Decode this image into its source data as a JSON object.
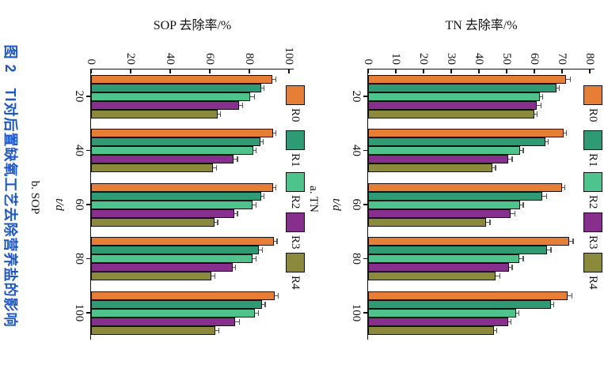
{
  "figure": {
    "caption": "图 2　TI对后置缺氧工艺去除营养盐的影响",
    "caption_color": "#1b57c8",
    "background": "#ffffff",
    "axis_color": "#111111",
    "orientation_note": "portrait figure rotated 90deg clockwise"
  },
  "chart_data": [
    {
      "id": "a",
      "type": "bar",
      "subplot_label": "a. TN",
      "ylabel": "TN 去除率/%",
      "xlabel": "t/d",
      "categories": [
        "20",
        "40",
        "60",
        "80",
        "100"
      ],
      "ylim": [
        0,
        80
      ],
      "yticks": [
        0,
        10,
        20,
        30,
        40,
        50,
        60,
        70,
        80
      ],
      "grid": false,
      "legend_position": "outer-top-row",
      "error_bars": true,
      "series": [
        {
          "name": "R0",
          "color": "#e67f35",
          "values": [
            71.5,
            70.5,
            70,
            72.5,
            72
          ],
          "errors": [
            1.5,
            1,
            1,
            1.5,
            1.5
          ]
        },
        {
          "name": "R1",
          "color": "#2e9b74",
          "values": [
            68,
            64,
            63,
            64.5,
            66
          ],
          "errors": [
            1,
            1,
            1.5,
            1.5,
            1
          ]
        },
        {
          "name": "R2",
          "color": "#4ec48c",
          "values": [
            62,
            55,
            55,
            54.5,
            53.5
          ],
          "errors": [
            1,
            1,
            1,
            1.5,
            1
          ]
        },
        {
          "name": "R3",
          "color": "#862f8c",
          "values": [
            61,
            50.5,
            51.5,
            51,
            50.5
          ],
          "errors": [
            1.5,
            1.5,
            1.5,
            1,
            1
          ]
        },
        {
          "name": "R4",
          "color": "#8b8a3c",
          "values": [
            60,
            45,
            42.5,
            46,
            45.5
          ],
          "errors": [
            1,
            1,
            1.5,
            1.5,
            1
          ]
        }
      ]
    },
    {
      "id": "b",
      "type": "bar",
      "subplot_label": "b. SOP",
      "ylabel": "SOP 去除率/%",
      "xlabel": "t/d",
      "categories": [
        "20",
        "40",
        "60",
        "80",
        "100"
      ],
      "ylim": [
        0,
        100
      ],
      "yticks": [
        0,
        20,
        40,
        60,
        80,
        100
      ],
      "grid": false,
      "legend_position": "outer-top-row",
      "error_bars": true,
      "series": [
        {
          "name": "R0",
          "color": "#e67f35",
          "values": [
            91.5,
            92,
            92,
            92.5,
            93
          ],
          "errors": [
            2,
            1.5,
            1.5,
            1.5,
            1.5
          ]
        },
        {
          "name": "R1",
          "color": "#2e9b74",
          "values": [
            86,
            85.5,
            86,
            85,
            86.5
          ],
          "errors": [
            1.5,
            1.5,
            1.5,
            1.5,
            1.5
          ]
        },
        {
          "name": "R2",
          "color": "#4ec48c",
          "values": [
            80.5,
            82,
            81.5,
            81.5,
            83
          ],
          "errors": [
            2,
            1.5,
            2,
            2,
            1.5
          ]
        },
        {
          "name": "R3",
          "color": "#862f8c",
          "values": [
            75,
            72,
            72.5,
            71.5,
            73
          ],
          "errors": [
            1.5,
            2,
            1.5,
            1.5,
            2
          ]
        },
        {
          "name": "R4",
          "color": "#8b8a3c",
          "values": [
            64,
            61.5,
            62.5,
            61,
            63
          ],
          "errors": [
            1.5,
            2,
            1.5,
            1.5,
            1.5
          ]
        }
      ]
    }
  ]
}
